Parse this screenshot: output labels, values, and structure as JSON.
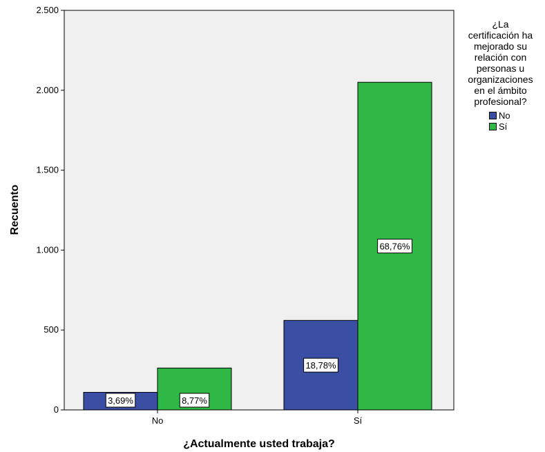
{
  "chart_data": {
    "type": "bar",
    "xlabel": "¿Actualmente usted trabaja?",
    "ylabel": "Recuento",
    "categories": [
      "No",
      "Sí"
    ],
    "ylim": [
      0,
      2500
    ],
    "yticks": [
      0,
      500,
      1000,
      1500,
      2000,
      2500
    ],
    "ytick_labels": [
      "0",
      "500",
      "1.000",
      "1.500",
      "2.000",
      "2.500"
    ],
    "legend_title": "¿La certificación ha mejorado su relación con personas u organizaciones en el ámbito profesional?",
    "legend_title_lines": [
      "¿La",
      "certificación ha",
      "mejorado su",
      "relación con",
      "personas u",
      "organizaciones",
      "en el ámbito",
      "profesional?"
    ],
    "legend_position": "right",
    "grid": false,
    "series": [
      {
        "name": "No",
        "color": "#3a4fa3",
        "values": [
          110,
          560
        ],
        "labels": [
          "3,69%",
          "18,78%"
        ]
      },
      {
        "name": "Sí",
        "color": "#2fb845",
        "values": [
          262,
          2050
        ],
        "labels": [
          "8,77%",
          "68,76%"
        ]
      }
    ],
    "plot_background": "#f0f0f0"
  }
}
